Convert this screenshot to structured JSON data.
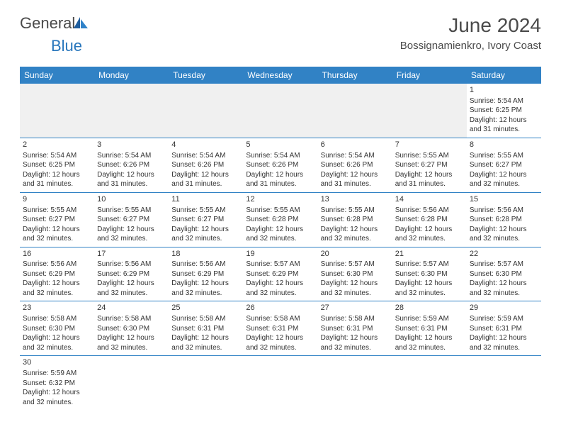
{
  "logo": {
    "text_general": "General",
    "text_blue": "Blue"
  },
  "title": "June 2024",
  "location": "Bossignamienkro, Ivory Coast",
  "colors": {
    "header_bg": "#3182c5",
    "header_text": "#ffffff",
    "border": "#3182c5",
    "text": "#333333",
    "logo_gray": "#4a4a4a",
    "logo_blue": "#2876bc",
    "empty_bg": "#f0f0f0"
  },
  "day_names": [
    "Sunday",
    "Monday",
    "Tuesday",
    "Wednesday",
    "Thursday",
    "Friday",
    "Saturday"
  ],
  "weeks": [
    [
      {
        "empty": true
      },
      {
        "empty": true
      },
      {
        "empty": true
      },
      {
        "empty": true
      },
      {
        "empty": true
      },
      {
        "empty": true
      },
      {
        "num": "1",
        "sunrise": "Sunrise: 5:54 AM",
        "sunset": "Sunset: 6:25 PM",
        "daylight1": "Daylight: 12 hours",
        "daylight2": "and 31 minutes."
      }
    ],
    [
      {
        "num": "2",
        "sunrise": "Sunrise: 5:54 AM",
        "sunset": "Sunset: 6:25 PM",
        "daylight1": "Daylight: 12 hours",
        "daylight2": "and 31 minutes."
      },
      {
        "num": "3",
        "sunrise": "Sunrise: 5:54 AM",
        "sunset": "Sunset: 6:26 PM",
        "daylight1": "Daylight: 12 hours",
        "daylight2": "and 31 minutes."
      },
      {
        "num": "4",
        "sunrise": "Sunrise: 5:54 AM",
        "sunset": "Sunset: 6:26 PM",
        "daylight1": "Daylight: 12 hours",
        "daylight2": "and 31 minutes."
      },
      {
        "num": "5",
        "sunrise": "Sunrise: 5:54 AM",
        "sunset": "Sunset: 6:26 PM",
        "daylight1": "Daylight: 12 hours",
        "daylight2": "and 31 minutes."
      },
      {
        "num": "6",
        "sunrise": "Sunrise: 5:54 AM",
        "sunset": "Sunset: 6:26 PM",
        "daylight1": "Daylight: 12 hours",
        "daylight2": "and 31 minutes."
      },
      {
        "num": "7",
        "sunrise": "Sunrise: 5:55 AM",
        "sunset": "Sunset: 6:27 PM",
        "daylight1": "Daylight: 12 hours",
        "daylight2": "and 31 minutes."
      },
      {
        "num": "8",
        "sunrise": "Sunrise: 5:55 AM",
        "sunset": "Sunset: 6:27 PM",
        "daylight1": "Daylight: 12 hours",
        "daylight2": "and 32 minutes."
      }
    ],
    [
      {
        "num": "9",
        "sunrise": "Sunrise: 5:55 AM",
        "sunset": "Sunset: 6:27 PM",
        "daylight1": "Daylight: 12 hours",
        "daylight2": "and 32 minutes."
      },
      {
        "num": "10",
        "sunrise": "Sunrise: 5:55 AM",
        "sunset": "Sunset: 6:27 PM",
        "daylight1": "Daylight: 12 hours",
        "daylight2": "and 32 minutes."
      },
      {
        "num": "11",
        "sunrise": "Sunrise: 5:55 AM",
        "sunset": "Sunset: 6:27 PM",
        "daylight1": "Daylight: 12 hours",
        "daylight2": "and 32 minutes."
      },
      {
        "num": "12",
        "sunrise": "Sunrise: 5:55 AM",
        "sunset": "Sunset: 6:28 PM",
        "daylight1": "Daylight: 12 hours",
        "daylight2": "and 32 minutes."
      },
      {
        "num": "13",
        "sunrise": "Sunrise: 5:55 AM",
        "sunset": "Sunset: 6:28 PM",
        "daylight1": "Daylight: 12 hours",
        "daylight2": "and 32 minutes."
      },
      {
        "num": "14",
        "sunrise": "Sunrise: 5:56 AM",
        "sunset": "Sunset: 6:28 PM",
        "daylight1": "Daylight: 12 hours",
        "daylight2": "and 32 minutes."
      },
      {
        "num": "15",
        "sunrise": "Sunrise: 5:56 AM",
        "sunset": "Sunset: 6:28 PM",
        "daylight1": "Daylight: 12 hours",
        "daylight2": "and 32 minutes."
      }
    ],
    [
      {
        "num": "16",
        "sunrise": "Sunrise: 5:56 AM",
        "sunset": "Sunset: 6:29 PM",
        "daylight1": "Daylight: 12 hours",
        "daylight2": "and 32 minutes."
      },
      {
        "num": "17",
        "sunrise": "Sunrise: 5:56 AM",
        "sunset": "Sunset: 6:29 PM",
        "daylight1": "Daylight: 12 hours",
        "daylight2": "and 32 minutes."
      },
      {
        "num": "18",
        "sunrise": "Sunrise: 5:56 AM",
        "sunset": "Sunset: 6:29 PM",
        "daylight1": "Daylight: 12 hours",
        "daylight2": "and 32 minutes."
      },
      {
        "num": "19",
        "sunrise": "Sunrise: 5:57 AM",
        "sunset": "Sunset: 6:29 PM",
        "daylight1": "Daylight: 12 hours",
        "daylight2": "and 32 minutes."
      },
      {
        "num": "20",
        "sunrise": "Sunrise: 5:57 AM",
        "sunset": "Sunset: 6:30 PM",
        "daylight1": "Daylight: 12 hours",
        "daylight2": "and 32 minutes."
      },
      {
        "num": "21",
        "sunrise": "Sunrise: 5:57 AM",
        "sunset": "Sunset: 6:30 PM",
        "daylight1": "Daylight: 12 hours",
        "daylight2": "and 32 minutes."
      },
      {
        "num": "22",
        "sunrise": "Sunrise: 5:57 AM",
        "sunset": "Sunset: 6:30 PM",
        "daylight1": "Daylight: 12 hours",
        "daylight2": "and 32 minutes."
      }
    ],
    [
      {
        "num": "23",
        "sunrise": "Sunrise: 5:58 AM",
        "sunset": "Sunset: 6:30 PM",
        "daylight1": "Daylight: 12 hours",
        "daylight2": "and 32 minutes."
      },
      {
        "num": "24",
        "sunrise": "Sunrise: 5:58 AM",
        "sunset": "Sunset: 6:30 PM",
        "daylight1": "Daylight: 12 hours",
        "daylight2": "and 32 minutes."
      },
      {
        "num": "25",
        "sunrise": "Sunrise: 5:58 AM",
        "sunset": "Sunset: 6:31 PM",
        "daylight1": "Daylight: 12 hours",
        "daylight2": "and 32 minutes."
      },
      {
        "num": "26",
        "sunrise": "Sunrise: 5:58 AM",
        "sunset": "Sunset: 6:31 PM",
        "daylight1": "Daylight: 12 hours",
        "daylight2": "and 32 minutes."
      },
      {
        "num": "27",
        "sunrise": "Sunrise: 5:58 AM",
        "sunset": "Sunset: 6:31 PM",
        "daylight1": "Daylight: 12 hours",
        "daylight2": "and 32 minutes."
      },
      {
        "num": "28",
        "sunrise": "Sunrise: 5:59 AM",
        "sunset": "Sunset: 6:31 PM",
        "daylight1": "Daylight: 12 hours",
        "daylight2": "and 32 minutes."
      },
      {
        "num": "29",
        "sunrise": "Sunrise: 5:59 AM",
        "sunset": "Sunset: 6:31 PM",
        "daylight1": "Daylight: 12 hours",
        "daylight2": "and 32 minutes."
      }
    ],
    [
      {
        "num": "30",
        "sunrise": "Sunrise: 5:59 AM",
        "sunset": "Sunset: 6:32 PM",
        "daylight1": "Daylight: 12 hours",
        "daylight2": "and 32 minutes."
      },
      {
        "empty": true
      },
      {
        "empty": true
      },
      {
        "empty": true
      },
      {
        "empty": true
      },
      {
        "empty": true
      },
      {
        "empty": true
      }
    ]
  ]
}
